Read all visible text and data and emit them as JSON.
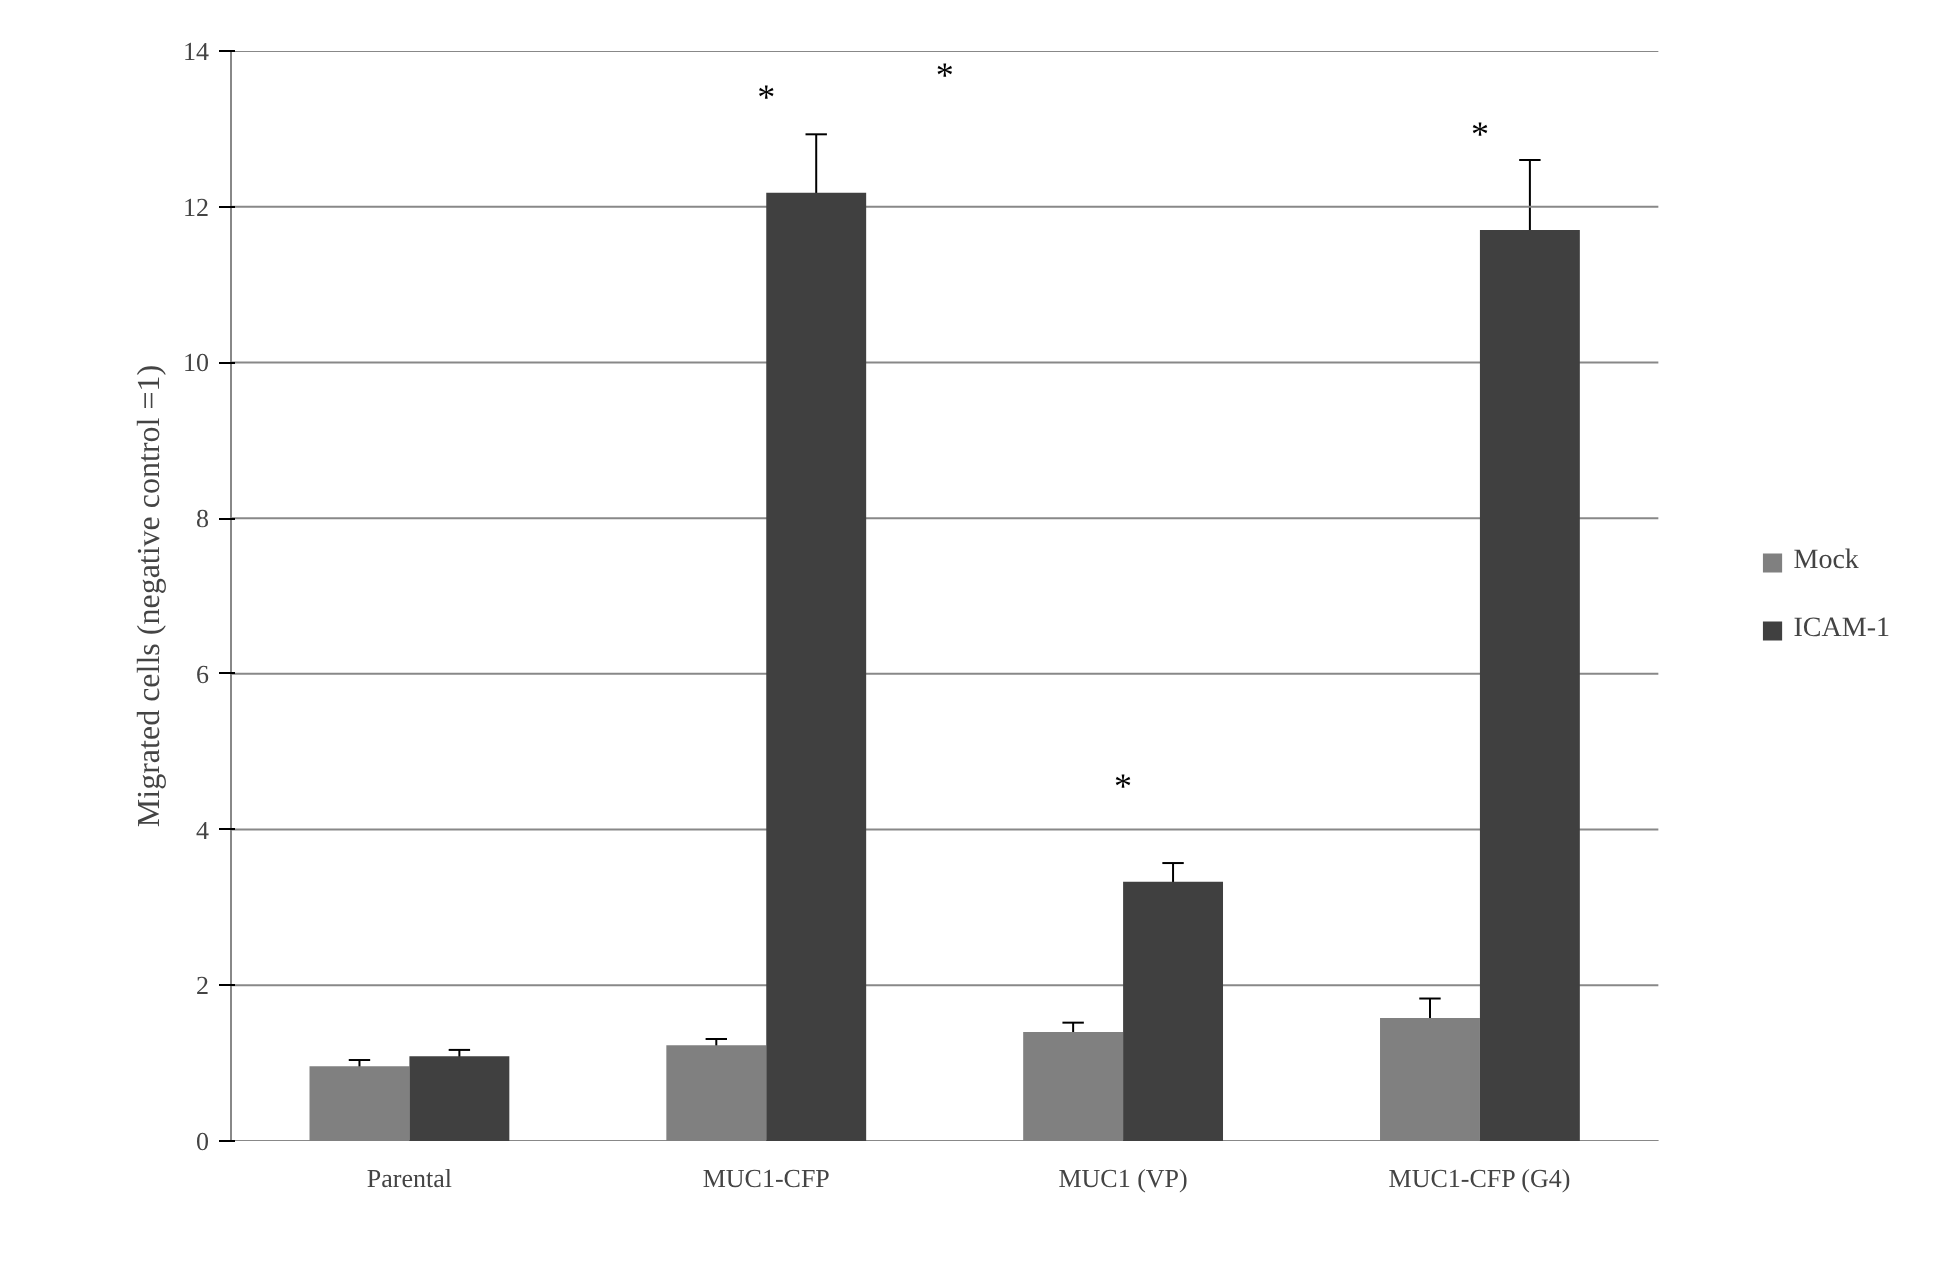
{
  "chart_data": {
    "type": "bar",
    "ylabel": "Migrated cells (negative control =1)",
    "categories": [
      "Parental",
      "MUC1-CFP",
      "MUC1 (VP)",
      "MUC1-CFP (G4)"
    ],
    "series": [
      {
        "name": "Mock",
        "color": "#808080",
        "values": [
          0.96,
          1.23,
          1.4,
          1.58
        ],
        "errors": [
          0.08,
          0.08,
          0.12,
          0.25
        ]
      },
      {
        "name": "ICAM-1",
        "color": "#404040",
        "values": [
          1.09,
          12.18,
          3.33,
          11.7
        ],
        "errors": [
          0.08,
          0.75,
          0.24,
          0.9
        ]
      }
    ],
    "ylim": [
      0,
      14
    ],
    "yticks": [
      0,
      2,
      4,
      6,
      8,
      10,
      12,
      14
    ],
    "grid": "y",
    "legend": "right",
    "annotations": [
      {
        "text": "*",
        "x": "MUC1-CFP",
        "y": 12.18
      },
      "*",
      {
        "text": "*",
        "x": "MUC1 (VP)",
        "y": 3.33
      },
      {
        "text": "*",
        "x": "MUC1-CFP (G4)",
        "y": 11.7
      }
    ]
  }
}
